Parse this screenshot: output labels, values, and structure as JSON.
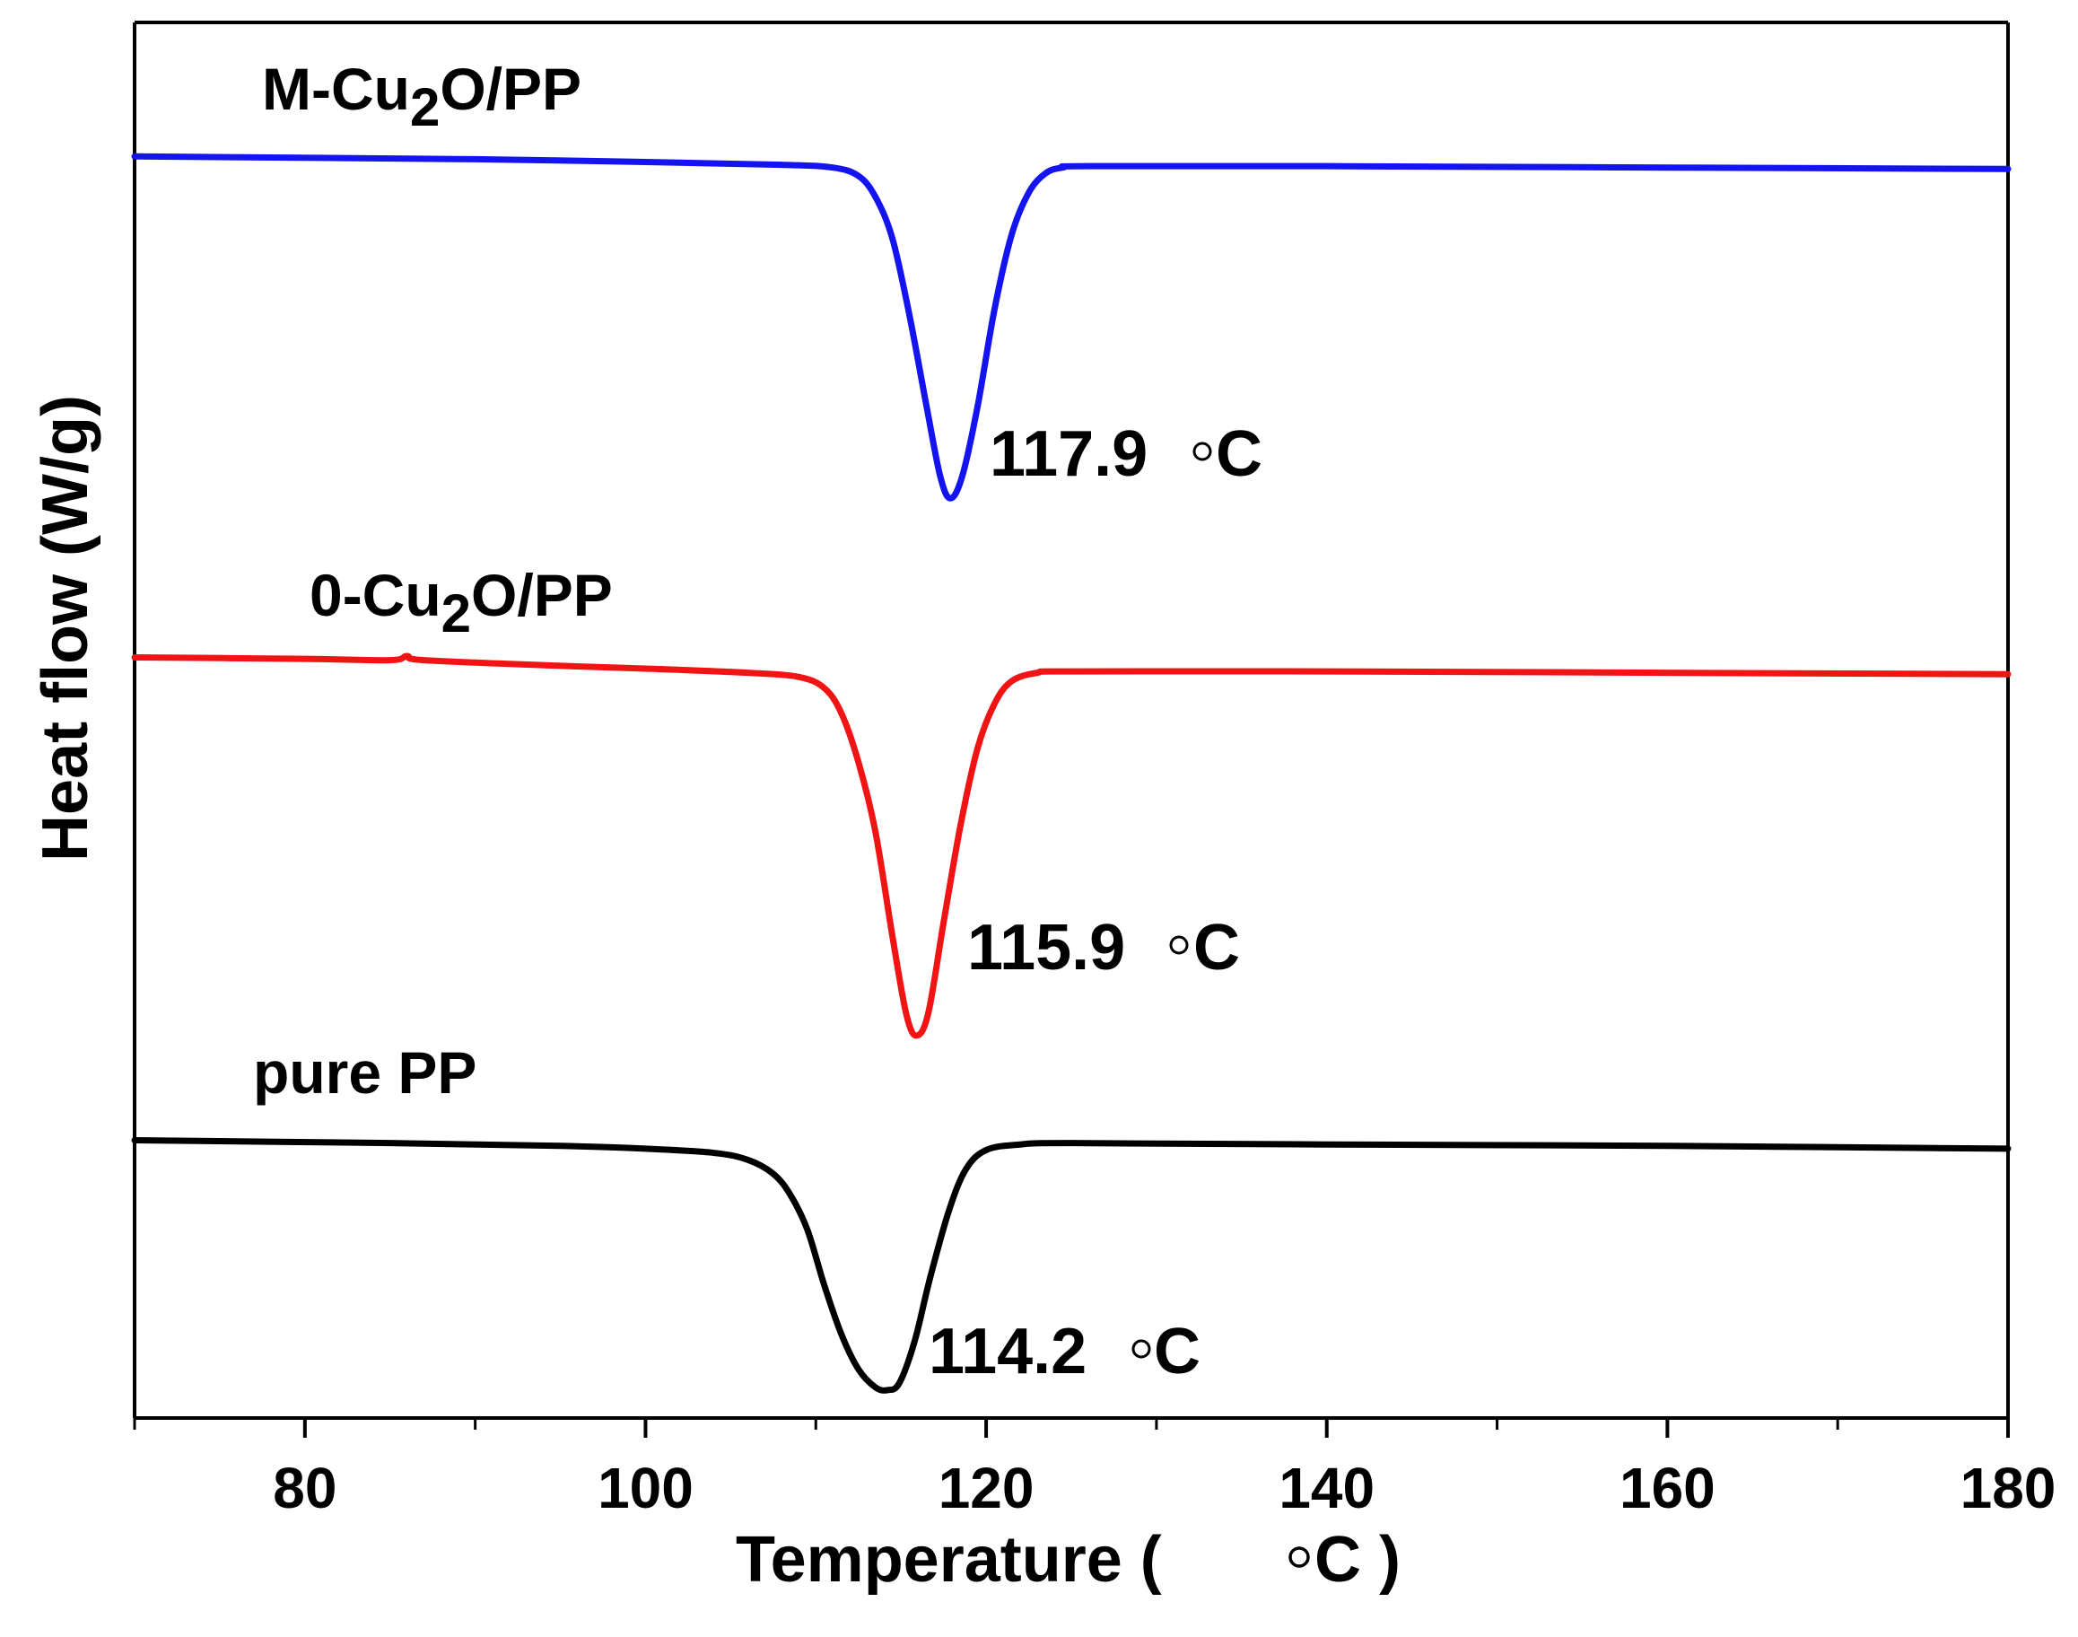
{
  "chart_data": {
    "type": "line",
    "title": "",
    "xlabel_text": "Temperature ( ",
    "xlabel_unit": "C )",
    "ylabel": "Heat flow (W/g)",
    "xlim": [
      70,
      180
    ],
    "ylim": [
      0,
      100
    ],
    "x_ticks_major": [
      80,
      100,
      120,
      140,
      160,
      180
    ],
    "x_ticks_minor": [
      70,
      90,
      110,
      130,
      150,
      170
    ],
    "grid": false,
    "y_tick_labels": false,
    "series": [
      {
        "name": "M-Cu2O/PP",
        "label_main": "M-Cu",
        "label_sub": "2",
        "label_tail": "O/PP",
        "color": "#1414f0",
        "peak_temp": 117.9,
        "peak_label": "117.9 ",
        "peak_unit": "C",
        "points": [
          [
            70,
            90.4
          ],
          [
            90,
            90.2
          ],
          [
            100,
            90.0
          ],
          [
            108,
            89.8
          ],
          [
            111,
            89.6
          ],
          [
            112.5,
            89.0
          ],
          [
            113.5,
            87.5
          ],
          [
            114.5,
            84.5
          ],
          [
            115.5,
            79.0
          ],
          [
            116.5,
            72.5
          ],
          [
            117.3,
            67.5
          ],
          [
            117.9,
            65.9
          ],
          [
            118.6,
            67.5
          ],
          [
            119.5,
            72.5
          ],
          [
            120.5,
            79.5
          ],
          [
            121.5,
            84.8
          ],
          [
            122.5,
            87.8
          ],
          [
            123.5,
            89.2
          ],
          [
            124.5,
            89.6
          ],
          [
            126,
            89.7
          ],
          [
            140,
            89.7
          ],
          [
            160,
            89.6
          ],
          [
            180,
            89.5
          ]
        ]
      },
      {
        "name": "0-Cu2O/PP",
        "label_main": "0-Cu",
        "label_sub": "2",
        "label_tail": "O/PP",
        "color": "#f01414",
        "peak_temp": 115.9,
        "peak_label": "115.9 ",
        "peak_unit": "C",
        "points": [
          [
            70,
            54.5
          ],
          [
            80,
            54.4
          ],
          [
            85,
            54.3
          ],
          [
            86,
            54.6
          ],
          [
            87,
            54.3
          ],
          [
            95,
            53.9
          ],
          [
            100,
            53.7
          ],
          [
            106,
            53.4
          ],
          [
            109,
            53.1
          ],
          [
            110.5,
            52.3
          ],
          [
            111.5,
            50.5
          ],
          [
            112.5,
            47.0
          ],
          [
            113.5,
            42.0
          ],
          [
            114.5,
            34.5
          ],
          [
            115.3,
            29.0
          ],
          [
            115.9,
            27.4
          ],
          [
            116.6,
            29.0
          ],
          [
            117.5,
            35.5
          ],
          [
            118.5,
            42.5
          ],
          [
            119.5,
            48.0
          ],
          [
            120.5,
            51.2
          ],
          [
            121.5,
            52.8
          ],
          [
            123,
            53.4
          ],
          [
            125,
            53.5
          ],
          [
            140,
            53.5
          ],
          [
            160,
            53.4
          ],
          [
            180,
            53.3
          ]
        ]
      },
      {
        "name": "pure PP",
        "label_main": "pure PP",
        "label_sub": "",
        "label_tail": "",
        "color": "#000000",
        "peak_temp": 114.2,
        "peak_label": "114.2 ",
        "peak_unit": "C",
        "points": [
          [
            70,
            19.9
          ],
          [
            85,
            19.7
          ],
          [
            95,
            19.5
          ],
          [
            100,
            19.3
          ],
          [
            104,
            19.0
          ],
          [
            106,
            18.5
          ],
          [
            107.5,
            17.5
          ],
          [
            108.5,
            16.0
          ],
          [
            109.5,
            13.5
          ],
          [
            110.5,
            9.5
          ],
          [
            111.5,
            6.0
          ],
          [
            112.5,
            3.5
          ],
          [
            113.5,
            2.2
          ],
          [
            114.2,
            2.0
          ],
          [
            114.9,
            2.5
          ],
          [
            115.8,
            5.5
          ],
          [
            116.7,
            10.0
          ],
          [
            117.8,
            14.8
          ],
          [
            118.8,
            17.8
          ],
          [
            120,
            19.2
          ],
          [
            122,
            19.6
          ],
          [
            125,
            19.7
          ],
          [
            140,
            19.6
          ],
          [
            160,
            19.5
          ],
          [
            180,
            19.3
          ]
        ]
      }
    ]
  }
}
